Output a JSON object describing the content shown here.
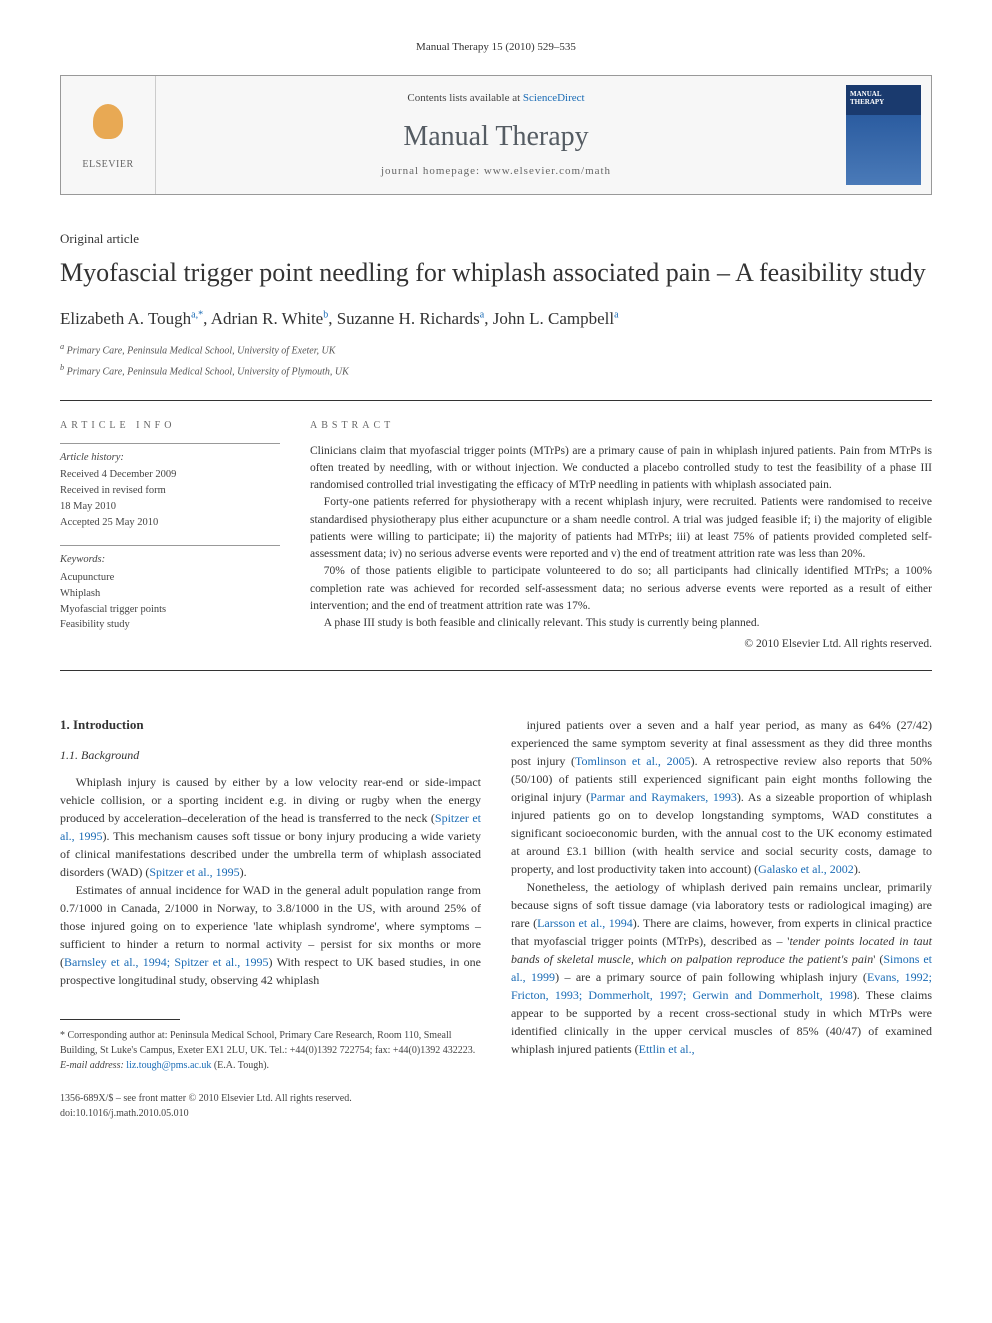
{
  "header": {
    "citation": "Manual Therapy 15 (2010) 529–535"
  },
  "banner": {
    "contents_prefix": "Contents lists available at ",
    "contents_link": "ScienceDirect",
    "journal_name": "Manual Therapy",
    "homepage_prefix": "journal homepage: ",
    "homepage_url": "www.elsevier.com/math",
    "publisher_label": "ELSEVIER"
  },
  "article": {
    "type": "Original article",
    "title": "Myofascial trigger point needling for whiplash associated pain – A feasibility study",
    "authors_html": "Elizabeth A. Tough",
    "authors": [
      {
        "name": "Elizabeth A. Tough",
        "sup": "a,*"
      },
      {
        "name": "Adrian R. White",
        "sup": "b"
      },
      {
        "name": "Suzanne H. Richards",
        "sup": "a"
      },
      {
        "name": "John L. Campbell",
        "sup": "a"
      }
    ],
    "affiliations": [
      {
        "sup": "a",
        "text": "Primary Care, Peninsula Medical School, University of Exeter, UK"
      },
      {
        "sup": "b",
        "text": "Primary Care, Peninsula Medical School, University of Plymouth, UK"
      }
    ]
  },
  "info": {
    "label": "ARTICLE INFO",
    "history_title": "Article history:",
    "history": [
      "Received 4 December 2009",
      "Received in revised form",
      "18 May 2010",
      "Accepted 25 May 2010"
    ],
    "keywords_title": "Keywords:",
    "keywords": [
      "Acupuncture",
      "Whiplash",
      "Myofascial trigger points",
      "Feasibility study"
    ]
  },
  "abstract": {
    "label": "ABSTRACT",
    "paragraphs": [
      "Clinicians claim that myofascial trigger points (MTrPs) are a primary cause of pain in whiplash injured patients. Pain from MTrPs is often treated by needling, with or without injection. We conducted a placebo controlled study to test the feasibility of a phase III randomised controlled trial investigating the efficacy of MTrP needling in patients with whiplash associated pain.",
      "Forty-one patients referred for physiotherapy with a recent whiplash injury, were recruited. Patients were randomised to receive standardised physiotherapy plus either acupuncture or a sham needle control. A trial was judged feasible if; i) the majority of eligible patients were willing to participate; ii) the majority of patients had MTrPs; iii) at least 75% of patients provided completed self-assessment data; iv) no serious adverse events were reported and v) the end of treatment attrition rate was less than 20%.",
      "70% of those patients eligible to participate volunteered to do so; all participants had clinically identified MTrPs; a 100% completion rate was achieved for recorded self-assessment data; no serious adverse events were reported as a result of either intervention; and the end of treatment attrition rate was 17%.",
      "A phase III study is both feasible and clinically relevant. This study is currently being planned."
    ],
    "copyright": "© 2010 Elsevier Ltd. All rights reserved."
  },
  "body": {
    "section1": "1. Introduction",
    "section11": "1.1. Background",
    "col1": [
      "Whiplash injury is caused by either by a low velocity rear-end or side-impact vehicle collision, or a sporting incident e.g. in diving or rugby when the energy produced by acceleration–deceleration of the head is transferred to the neck (<span class=\"ref-link\">Spitzer et al., 1995</span>). This mechanism causes soft tissue or bony injury producing a wide variety of clinical manifestations described under the umbrella term of whiplash associated disorders (WAD) (<span class=\"ref-link\">Spitzer et al., 1995</span>).",
      "Estimates of annual incidence for WAD in the general adult population range from 0.7/1000 in Canada, 2/1000 in Norway, to 3.8/1000 in the US, with around 25% of those injured going on to experience 'late whiplash syndrome', where symptoms – sufficient to hinder a return to normal activity – persist for six months or more (<span class=\"ref-link\">Barnsley et al., 1994; Spitzer et al., 1995</span>) With respect to UK based studies, in one prospective longitudinal study, observing 42 whiplash"
    ],
    "col2": [
      "injured patients over a seven and a half year period, as many as 64% (27/42) experienced the same symptom severity at final assessment as they did three months post injury (<span class=\"ref-link\">Tomlinson et al., 2005</span>). A retrospective review also reports that 50% (50/100) of patients still experienced significant pain eight months following the original injury (<span class=\"ref-link\">Parmar and Raymakers, 1993</span>). As a sizeable proportion of whiplash injured patients go on to develop longstanding symptoms, WAD constitutes a significant socioeconomic burden, with the annual cost to the UK economy estimated at around £3.1 billion (with health service and social security costs, damage to property, and lost productivity taken into account) (<span class=\"ref-link\">Galasko et al., 2002</span>).",
      "Nonetheless, the aetiology of whiplash derived pain remains unclear, primarily because signs of soft tissue damage (via laboratory tests or radiological imaging) are rare (<span class=\"ref-link\">Larsson et al., 1994</span>). There are claims, however, from experts in clinical practice that myofascial trigger points (MTrPs), described as – '<em>tender points located in taut bands of skeletal muscle, which on palpation reproduce the patient's pain</em>' (<span class=\"ref-link\">Simons et al., 1999</span>) – are a primary source of pain following whiplash injury (<span class=\"ref-link\">Evans, 1992; Fricton, 1993; Dommerholt, 1997; Gerwin and Dommerholt, 1998</span>). These claims appear to be supported by a recent cross-sectional study in which MTrPs were identified clinically in the upper cervical muscles of 85% (40/47) of examined whiplash injured patients (<span class=\"ref-link\">Ettlin et al.,"
    ]
  },
  "footnote": {
    "corresponding": "* Corresponding author at: Peninsula Medical School, Primary Care Research, Room 110, Smeall Building, St Luke's Campus, Exeter EX1 2LU, UK. Tel.: +44(0)1392 722754; fax: +44(0)1392 432223.",
    "email_label": "E-mail address:",
    "email": "liz.tough@pms.ac.uk",
    "email_suffix": "(E.A. Tough)."
  },
  "footer": {
    "issn": "1356-689X/$ – see front matter © 2010 Elsevier Ltd. All rights reserved.",
    "doi": "doi:10.1016/j.math.2010.05.010"
  }
}
